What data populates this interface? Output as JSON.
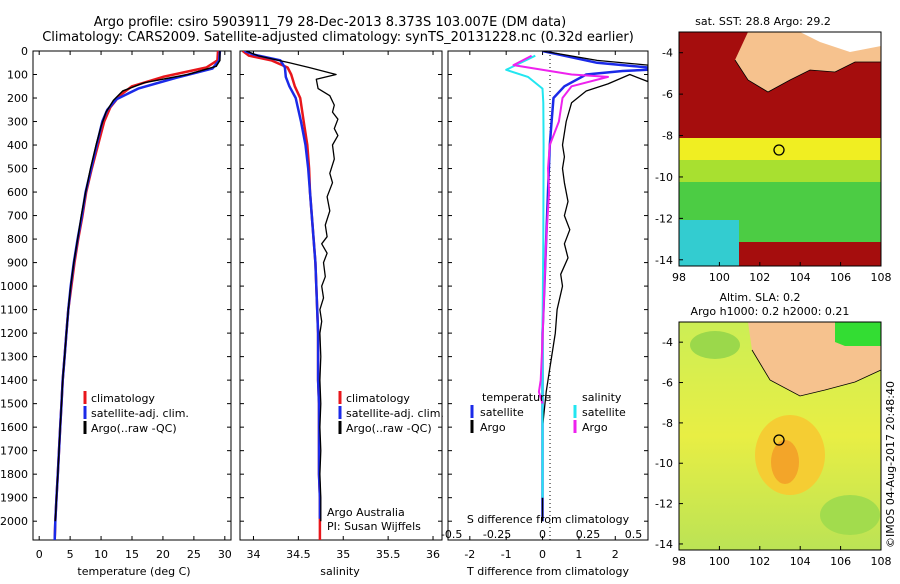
{
  "header": {
    "line1": "Argo profile: csiro 5903911_79 28-Dec-2013 8.373S 103.007E (DM data)",
    "line2": "Climatology: CARS2009. Satellite-adjusted climatology: synTS_20131228.nc (0.32d earlier)"
  },
  "credit": "©IMOS 04-Aug-2017 20:48:40",
  "colors": {
    "climatology": "#e8161b",
    "satellite": "#1b2ae8",
    "argo": "#000000",
    "cyan": "#22e6f0",
    "magenta": "#ee22ee"
  },
  "legend_main": {
    "climatology": "climatology",
    "satellite": "satellite-adj. clim.",
    "argo": "Argo(..raw -QC)"
  },
  "legend_diff": {
    "temperature": "temperature",
    "salinity": "salinity",
    "satellite": "satellite",
    "argo": "Argo"
  },
  "annot": {
    "group": "Argo Australia",
    "pi": "PI: Susan Wijffels"
  },
  "map_sst": {
    "title": "sat. SST: 28.8 Argo: 29.2",
    "yticks": [
      "-4",
      "-6",
      "-8",
      "-10",
      "-12",
      "-14"
    ],
    "xticks": [
      "98",
      "100",
      "102",
      "104",
      "106",
      "108"
    ]
  },
  "map_sla": {
    "title1": "Altim. SLA: 0.2",
    "title2": "Argo h1000: 0.2 h2000: 0.21",
    "yticks": [
      "-4",
      "-6",
      "-8",
      "-10",
      "-12",
      "-14"
    ],
    "xticks": [
      "98",
      "100",
      "102",
      "104",
      "106",
      "108"
    ]
  },
  "chart_data": [
    {
      "type": "line",
      "xlabel": "temperature (deg C)",
      "ylabel": "",
      "xlim": [
        -1,
        31
      ],
      "ylim": [
        2080,
        0
      ],
      "xticks": [
        0,
        5,
        10,
        15,
        20,
        25,
        30
      ],
      "yticks": [
        0,
        100,
        200,
        300,
        400,
        500,
        600,
        700,
        800,
        900,
        1000,
        1100,
        1200,
        1300,
        1400,
        1500,
        1600,
        1700,
        1800,
        1900,
        2000
      ],
      "series": [
        {
          "name": "climatology",
          "points": [
            [
              28.9,
              0
            ],
            [
              28.8,
              40
            ],
            [
              27,
              70
            ],
            [
              20,
              110
            ],
            [
              15,
              150
            ],
            [
              13,
              190
            ],
            [
              11.5,
              240
            ],
            [
              10.5,
              300
            ],
            [
              9.5,
              400
            ],
            [
              8.5,
              500
            ],
            [
              7.6,
              600
            ],
            [
              7,
              700
            ],
            [
              6.3,
              800
            ],
            [
              5.7,
              900
            ],
            [
              5.2,
              1000
            ],
            [
              4.7,
              1100
            ],
            [
              4.4,
              1200
            ],
            [
              4.1,
              1300
            ],
            [
              3.8,
              1400
            ],
            [
              3.6,
              1500
            ],
            [
              3.4,
              1600
            ],
            [
              3.2,
              1700
            ],
            [
              3,
              1800
            ],
            [
              2.8,
              1900
            ],
            [
              2.6,
              2000
            ],
            [
              2.5,
              2080
            ]
          ]
        },
        {
          "name": "satellite-adj. clim.",
          "points": [
            [
              29.2,
              0
            ],
            [
              29.1,
              40
            ],
            [
              28,
              75
            ],
            [
              22,
              115
            ],
            [
              16,
              160
            ],
            [
              12.5,
              205
            ],
            [
              11,
              250
            ],
            [
              10.2,
              300
            ],
            [
              9.3,
              400
            ],
            [
              8.4,
              500
            ],
            [
              7.5,
              600
            ],
            [
              6.9,
              700
            ],
            [
              6.2,
              800
            ],
            [
              5.6,
              900
            ],
            [
              5.1,
              1000
            ],
            [
              4.7,
              1100
            ],
            [
              4.4,
              1200
            ],
            [
              4.1,
              1300
            ],
            [
              3.8,
              1400
            ],
            [
              3.6,
              1500
            ],
            [
              3.4,
              1600
            ],
            [
              3.2,
              1700
            ],
            [
              3,
              1800
            ],
            [
              2.8,
              1900
            ],
            [
              2.6,
              2000
            ],
            [
              2.5,
              2080
            ]
          ]
        },
        {
          "name": "Argo(..raw -QC)",
          "points": [
            [
              29.2,
              0
            ],
            [
              29.2,
              40
            ],
            [
              28.6,
              65
            ],
            [
              24,
              100
            ],
            [
              17,
              135
            ],
            [
              13.5,
              170
            ],
            [
              12,
              210
            ],
            [
              10.8,
              260
            ],
            [
              10,
              320
            ],
            [
              9.2,
              400
            ],
            [
              8.3,
              500
            ],
            [
              7.5,
              600
            ],
            [
              6.8,
              700
            ],
            [
              6.2,
              800
            ],
            [
              5.6,
              900
            ],
            [
              5.1,
              1000
            ],
            [
              4.7,
              1100
            ],
            [
              4.4,
              1200
            ],
            [
              4.1,
              1300
            ],
            [
              3.8,
              1400
            ],
            [
              3.6,
              1500
            ],
            [
              3.4,
              1600
            ],
            [
              3.2,
              1700
            ],
            [
              3,
              1800
            ],
            [
              2.8,
              1900
            ],
            [
              2.6,
              2000
            ]
          ]
        }
      ]
    },
    {
      "type": "line",
      "xlabel": "salinity",
      "ylabel": "",
      "xlim": [
        33.85,
        36.1
      ],
      "ylim": [
        2080,
        0
      ],
      "xticks": [
        34,
        34.5,
        35,
        35.5,
        36
      ],
      "series": [
        {
          "name": "climatology",
          "points": [
            [
              33.88,
              0
            ],
            [
              33.95,
              20
            ],
            [
              34.2,
              40
            ],
            [
              34.38,
              70
            ],
            [
              34.42,
              100
            ],
            [
              34.46,
              150
            ],
            [
              34.52,
              200
            ],
            [
              34.56,
              300
            ],
            [
              34.6,
              400
            ],
            [
              34.62,
              500
            ],
            [
              34.63,
              600
            ],
            [
              34.65,
              700
            ],
            [
              34.67,
              800
            ],
            [
              34.69,
              900
            ],
            [
              34.7,
              1000
            ],
            [
              34.71,
              1100
            ],
            [
              34.72,
              1200
            ],
            [
              34.72,
              1300
            ],
            [
              34.72,
              1400
            ],
            [
              34.73,
              1500
            ],
            [
              34.73,
              1600
            ],
            [
              34.73,
              1700
            ],
            [
              34.73,
              1800
            ],
            [
              34.74,
              1900
            ],
            [
              34.74,
              2000
            ],
            [
              34.74,
              2080
            ]
          ]
        },
        {
          "name": "satellite-adj. clim.",
          "points": [
            [
              33.9,
              0
            ],
            [
              34,
              15
            ],
            [
              34.3,
              40
            ],
            [
              34.35,
              70
            ],
            [
              34.36,
              110
            ],
            [
              34.4,
              150
            ],
            [
              34.47,
              200
            ],
            [
              34.53,
              300
            ],
            [
              34.58,
              400
            ],
            [
              34.61,
              500
            ],
            [
              34.63,
              600
            ],
            [
              34.65,
              700
            ],
            [
              34.67,
              800
            ],
            [
              34.69,
              900
            ],
            [
              34.7,
              1000
            ],
            [
              34.71,
              1100
            ],
            [
              34.72,
              1200
            ],
            [
              34.72,
              1300
            ],
            [
              34.72,
              1400
            ],
            [
              34.73,
              1500
            ],
            [
              34.73,
              1600
            ],
            [
              34.73,
              1700
            ],
            [
              34.73,
              1800
            ],
            [
              34.74,
              1900
            ],
            [
              34.74,
              1990
            ]
          ]
        },
        {
          "name": "Argo(..raw -QC)",
          "points": [
            [
              33.92,
              0
            ],
            [
              34.05,
              20
            ],
            [
              34.4,
              50
            ],
            [
              34.62,
              70
            ],
            [
              34.92,
              100
            ],
            [
              34.7,
              120
            ],
            [
              34.72,
              160
            ],
            [
              34.85,
              190
            ],
            [
              34.9,
              230
            ],
            [
              34.88,
              260
            ],
            [
              34.94,
              290
            ],
            [
              34.9,
              330
            ],
            [
              34.94,
              360
            ],
            [
              34.88,
              400
            ],
            [
              34.9,
              460
            ],
            [
              34.85,
              520
            ],
            [
              34.88,
              560
            ],
            [
              34.82,
              620
            ],
            [
              34.85,
              680
            ],
            [
              34.8,
              740
            ],
            [
              34.82,
              790
            ],
            [
              34.76,
              820
            ],
            [
              34.82,
              860
            ],
            [
              34.78,
              900
            ],
            [
              34.8,
              960
            ],
            [
              34.76,
              1000
            ],
            [
              34.78,
              1050
            ],
            [
              34.74,
              1100
            ],
            [
              34.76,
              1150
            ],
            [
              34.74,
              1200
            ],
            [
              34.75,
              1300
            ],
            [
              34.74,
              1400
            ],
            [
              34.75,
              1500
            ],
            [
              34.74,
              1600
            ],
            [
              34.75,
              1700
            ],
            [
              34.74,
              1800
            ],
            [
              34.75,
              1900
            ],
            [
              34.75,
              2000
            ]
          ]
        }
      ]
    },
    {
      "type": "line",
      "xlabel": "T difference from climatology",
      "xlabel_top": "S difference from climatology",
      "xlim": [
        -2.6,
        2.9
      ],
      "ylim": [
        2080,
        0
      ],
      "xticks": [
        -2,
        -1,
        0,
        1,
        2
      ],
      "xticks_s": [
        -0.5,
        -0.25,
        0,
        0.25,
        0.5
      ],
      "series": [
        {
          "name": "temperature satellite",
          "points": [
            [
              0,
              0
            ],
            [
              1.5,
              50
            ],
            [
              2.9,
              70
            ],
            [
              2.9,
              80
            ],
            [
              2.2,
              85
            ],
            [
              1.2,
              100
            ],
            [
              0.6,
              150
            ],
            [
              0.3,
              200
            ],
            [
              0.25,
              300
            ],
            [
              0.2,
              400
            ],
            [
              0.15,
              600
            ],
            [
              0.1,
              800
            ],
            [
              0.05,
              1000
            ],
            [
              0,
              1200
            ],
            [
              0,
              2000
            ]
          ]
        },
        {
          "name": "temperature Argo",
          "points": [
            [
              0,
              0
            ],
            [
              1.5,
              40
            ],
            [
              2.9,
              60
            ],
            [
              2.9,
              130
            ],
            [
              2.4,
              100
            ],
            [
              1.8,
              140
            ],
            [
              1.2,
              170
            ],
            [
              0.8,
              220
            ],
            [
              0.65,
              300
            ],
            [
              0.55,
              400
            ],
            [
              0.6,
              450
            ],
            [
              0.55,
              500
            ],
            [
              0.6,
              560
            ],
            [
              0.7,
              640
            ],
            [
              0.6,
              700
            ],
            [
              0.75,
              760
            ],
            [
              0.6,
              820
            ],
            [
              0.7,
              880
            ],
            [
              0.5,
              950
            ],
            [
              0.55,
              1000
            ],
            [
              0.4,
              1100
            ],
            [
              0.35,
              1200
            ],
            [
              0.2,
              1350
            ],
            [
              0.1,
              1450
            ],
            [
              0,
              1600
            ],
            [
              0,
              2000
            ]
          ]
        },
        {
          "name": "salinity satellite",
          "points": [
            [
              -0.2,
              20
            ],
            [
              -1,
              80
            ],
            [
              -0.4,
              110
            ],
            [
              0,
              160
            ],
            [
              0.02,
              220
            ],
            [
              0.03,
              400
            ],
            [
              0.02,
              800
            ],
            [
              0,
              1200
            ],
            [
              0,
              1900
            ]
          ]
        },
        {
          "name": "salinity Argo",
          "points": [
            [
              -0.3,
              20
            ],
            [
              -0.8,
              60
            ],
            [
              0.8,
              100
            ],
            [
              1.8,
              110
            ],
            [
              0.8,
              150
            ],
            [
              0.55,
              200
            ],
            [
              0.45,
              300
            ],
            [
              0.2,
              400
            ],
            [
              0.15,
              500
            ],
            [
              0.18,
              600
            ],
            [
              0.1,
              800
            ],
            [
              0.05,
              1000
            ],
            [
              0.03,
              1100
            ],
            [
              -0.02,
              1300
            ],
            [
              -0.05,
              1400
            ],
            [
              -0.1,
              1450
            ],
            [
              0,
              1500
            ]
          ]
        }
      ]
    }
  ]
}
